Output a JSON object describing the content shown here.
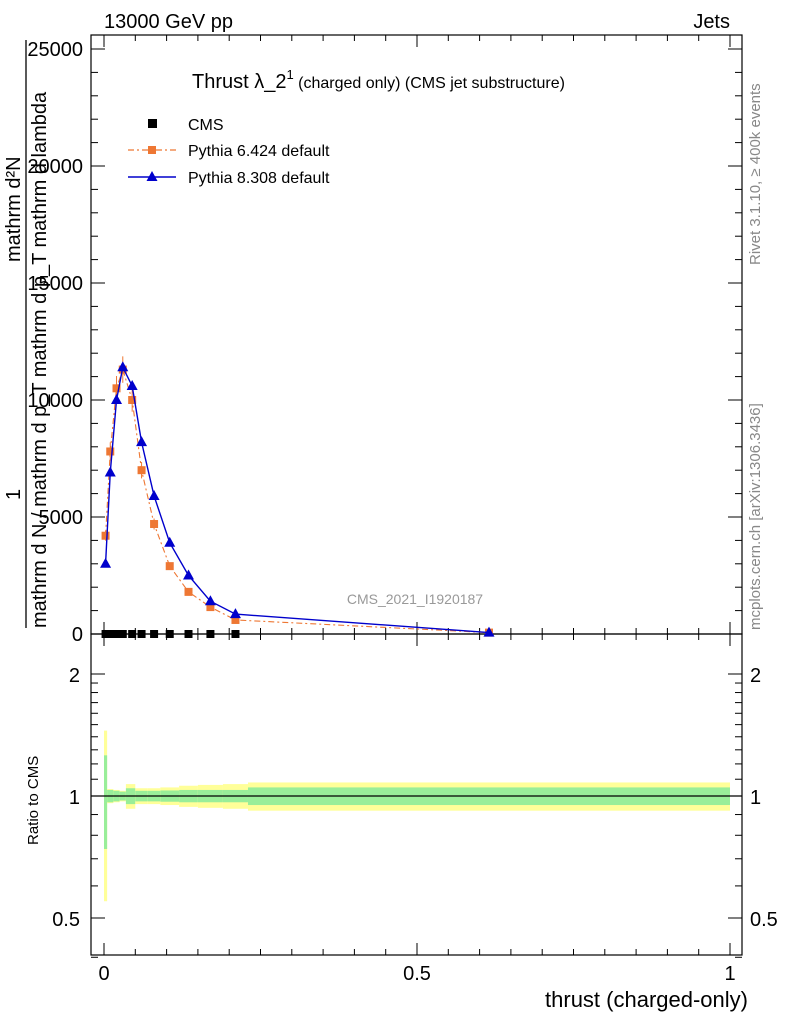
{
  "header": {
    "energy_label": "13000 GeV pp",
    "category_label": "Jets",
    "title_main": "Thrust λ_2",
    "title_sup": "1",
    "title_rest": " (charged only) (CMS jet substructure)"
  },
  "side_labels": {
    "rivet": "Rivet 3.1.10, ≥ 400k events",
    "mcplots": "mcplots.cern.ch [arXiv:1306.3436]"
  },
  "watermark": "CMS_2021_I1920187",
  "yaxis_main": {
    "numerator_1": "1",
    "denominator_1": "mathrm d N / mathrm d p_T mathrm d p_T mathrm d lambda",
    "garbled": "mathrm d²N"
  },
  "yaxis_ratio": {
    "label": "Ratio to CMS"
  },
  "xaxis": {
    "label": "thrust (charged-only)"
  },
  "legend": {
    "cms": "CMS",
    "py6": "Pythia 6.424 default",
    "py8": "Pythia 8.308 default"
  },
  "colors": {
    "cms": "#000000",
    "py6": "#ee7733",
    "py8": "#0000cc",
    "band_inner": "#99ee99",
    "band_outer": "#ffff99"
  },
  "chart_data": {
    "type": "line",
    "x_range": [
      0,
      1
    ],
    "y_range_main": [
      0,
      25000
    ],
    "y_range_ratio": [
      0.4,
      2.3
    ],
    "x_ticks": [
      "0",
      "0.5",
      "1"
    ],
    "y_ticks_main": [
      "0",
      "5000",
      "10000",
      "15000",
      "20000",
      "25000"
    ],
    "y_ticks_ratio": [
      "0.5",
      "1",
      "2"
    ],
    "series": [
      {
        "name": "CMS",
        "x": [
          0.0025,
          0.01,
          0.02,
          0.03,
          0.045,
          0.06,
          0.08,
          0.105,
          0.135,
          0.17,
          0.21
        ],
        "values": [
          0,
          0,
          0,
          0,
          0,
          0,
          0,
          0,
          0,
          0,
          0
        ]
      },
      {
        "name": "Pythia 6.424 default",
        "x": [
          0.0025,
          0.01,
          0.02,
          0.03,
          0.045,
          0.06,
          0.08,
          0.105,
          0.135,
          0.17,
          0.21,
          0.615
        ],
        "values": [
          4200,
          7800,
          10500,
          11300,
          10000,
          7000,
          4700,
          2900,
          1800,
          1150,
          600,
          60
        ]
      },
      {
        "name": "Pythia 8.308 default",
        "x": [
          0.0025,
          0.01,
          0.02,
          0.03,
          0.045,
          0.06,
          0.08,
          0.105,
          0.135,
          0.17,
          0.21,
          0.615
        ],
        "values": [
          3000,
          6900,
          10000,
          11400,
          10600,
          8200,
          5900,
          3900,
          2500,
          1400,
          850,
          60
        ]
      }
    ],
    "ratio_band": {
      "x_edges": [
        0,
        0.005,
        0.015,
        0.025,
        0.035,
        0.05,
        0.07,
        0.09,
        0.12,
        0.15,
        0.19,
        0.23,
        1.0
      ],
      "inner": [
        0.26,
        0.035,
        0.03,
        0.025,
        0.045,
        0.03,
        0.03,
        0.032,
        0.035,
        0.035,
        0.035,
        0.05
      ],
      "outer": [
        0.45,
        0.04,
        0.035,
        0.03,
        0.07,
        0.045,
        0.045,
        0.05,
        0.06,
        0.065,
        0.07,
        0.08
      ]
    }
  }
}
